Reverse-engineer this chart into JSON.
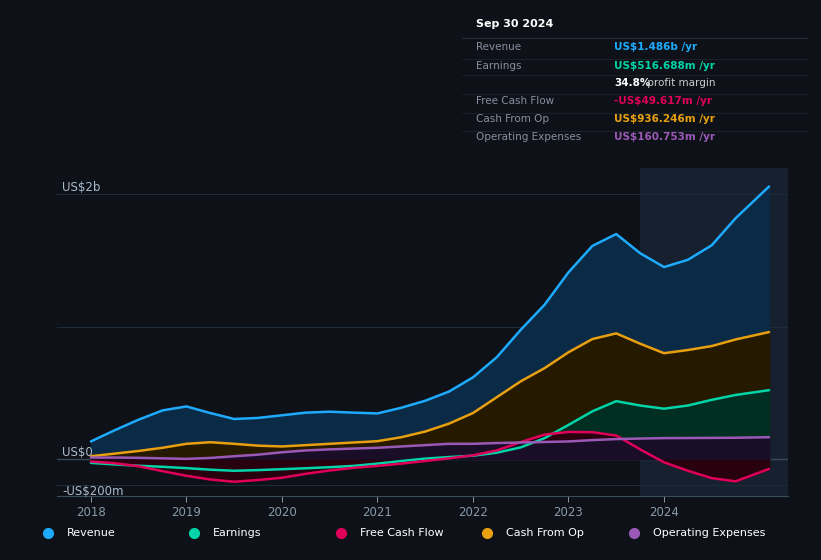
{
  "bg_color": "#0e1218",
  "plot_bg_color": "#0e1218",
  "ylim": [
    -280,
    2200
  ],
  "xlim": [
    2017.65,
    2025.3
  ],
  "xticks": [
    2018,
    2019,
    2020,
    2021,
    2022,
    2023,
    2024
  ],
  "grid_color": "#1e2d3d",
  "zero_line_color": "#3a4a5a",
  "highlight_x_start": 2023.75,
  "highlight_color": "#16202e",
  "series": {
    "revenue": {
      "color": "#1eaaff",
      "fill_color": "#0a2a45",
      "label": "Revenue",
      "x": [
        2018.0,
        2018.25,
        2018.5,
        2018.75,
        2019.0,
        2019.25,
        2019.5,
        2019.75,
        2020.0,
        2020.25,
        2020.5,
        2020.75,
        2021.0,
        2021.25,
        2021.5,
        2021.75,
        2022.0,
        2022.25,
        2022.5,
        2022.75,
        2023.0,
        2023.25,
        2023.5,
        2023.75,
        2024.0,
        2024.25,
        2024.5,
        2024.75,
        2025.1
      ],
      "y": [
        130,
        215,
        295,
        365,
        395,
        345,
        300,
        308,
        328,
        348,
        355,
        348,
        342,
        385,
        438,
        508,
        615,
        768,
        975,
        1165,
        1410,
        1610,
        1700,
        1555,
        1450,
        1505,
        1615,
        1820,
        2060
      ]
    },
    "earnings": {
      "color": "#00d4a8",
      "fill_color": "#002f22",
      "label": "Earnings",
      "x": [
        2018.0,
        2018.25,
        2018.5,
        2018.75,
        2019.0,
        2019.25,
        2019.5,
        2019.75,
        2020.0,
        2020.25,
        2020.5,
        2020.75,
        2021.0,
        2021.25,
        2021.5,
        2021.75,
        2022.0,
        2022.25,
        2022.5,
        2022.75,
        2023.0,
        2023.25,
        2023.5,
        2023.75,
        2024.0,
        2024.25,
        2024.5,
        2024.75,
        2025.1
      ],
      "y": [
        -32,
        -44,
        -54,
        -62,
        -72,
        -84,
        -92,
        -87,
        -80,
        -73,
        -65,
        -55,
        -38,
        -18,
        0,
        12,
        22,
        45,
        85,
        155,
        255,
        358,
        435,
        402,
        378,
        402,
        445,
        482,
        518
      ]
    },
    "free_cash_flow": {
      "color": "#e0005a",
      "fill_color": "#28000e",
      "label": "Free Cash Flow",
      "x": [
        2018.0,
        2018.25,
        2018.5,
        2018.75,
        2019.0,
        2019.25,
        2019.5,
        2019.75,
        2020.0,
        2020.25,
        2020.5,
        2020.75,
        2021.0,
        2021.25,
        2021.5,
        2021.75,
        2022.0,
        2022.25,
        2022.5,
        2022.75,
        2023.0,
        2023.25,
        2023.5,
        2023.75,
        2024.0,
        2024.25,
        2024.5,
        2024.75,
        2025.1
      ],
      "y": [
        -22,
        -35,
        -58,
        -95,
        -130,
        -158,
        -175,
        -162,
        -145,
        -115,
        -90,
        -70,
        -55,
        -38,
        -18,
        2,
        25,
        62,
        125,
        182,
        202,
        200,
        175,
        70,
        -28,
        -92,
        -148,
        -172,
        -78
      ]
    },
    "cash_from_op": {
      "color": "#e8a010",
      "fill_color": "#251a00",
      "label": "Cash From Op",
      "x": [
        2018.0,
        2018.25,
        2018.5,
        2018.75,
        2019.0,
        2019.25,
        2019.5,
        2019.75,
        2020.0,
        2020.25,
        2020.5,
        2020.75,
        2021.0,
        2021.25,
        2021.5,
        2021.75,
        2022.0,
        2022.25,
        2022.5,
        2022.75,
        2023.0,
        2023.25,
        2023.5,
        2023.75,
        2024.0,
        2024.25,
        2024.5,
        2024.75,
        2025.1
      ],
      "y": [
        18,
        38,
        58,
        82,
        112,
        124,
        112,
        98,
        92,
        102,
        112,
        122,
        132,
        162,
        205,
        265,
        345,
        465,
        585,
        685,
        805,
        905,
        948,
        870,
        798,
        822,
        852,
        902,
        958
      ]
    },
    "operating_expenses": {
      "color": "#9b59b6",
      "fill_color": "#1a0d28",
      "label": "Operating Expenses",
      "x": [
        2018.0,
        2018.25,
        2018.5,
        2018.75,
        2019.0,
        2019.25,
        2019.5,
        2019.75,
        2020.0,
        2020.25,
        2020.5,
        2020.75,
        2021.0,
        2021.25,
        2021.5,
        2021.75,
        2022.0,
        2022.25,
        2022.5,
        2022.75,
        2023.0,
        2023.25,
        2023.5,
        2023.75,
        2024.0,
        2024.25,
        2024.5,
        2024.75,
        2025.1
      ],
      "y": [
        8,
        8,
        6,
        2,
        -2,
        5,
        18,
        30,
        48,
        62,
        70,
        76,
        82,
        92,
        102,
        112,
        112,
        118,
        122,
        126,
        130,
        140,
        148,
        152,
        155,
        156,
        157,
        158,
        162
      ]
    }
  },
  "tooltip": {
    "date": "Sep 30 2024",
    "rows": [
      {
        "label": "Revenue",
        "value": "US$1.486b /yr",
        "value_color": "#1eaaff",
        "bold_prefix": ""
      },
      {
        "label": "Earnings",
        "value": "US$516.688m /yr",
        "value_color": "#00d4a8",
        "bold_prefix": ""
      },
      {
        "label": "",
        "value": "34.8%",
        "value_color": "#ffffff",
        "suffix": " profit margin",
        "bold_prefix": ""
      },
      {
        "label": "Free Cash Flow",
        "value": "-US$49.617m /yr",
        "value_color": "#e0005a",
        "bold_prefix": ""
      },
      {
        "label": "Cash From Op",
        "value": "US$936.246m /yr",
        "value_color": "#e8a010",
        "bold_prefix": ""
      },
      {
        "label": "Operating Expenses",
        "value": "US$160.753m /yr",
        "value_color": "#9b59b6",
        "bold_prefix": ""
      }
    ]
  },
  "legend": [
    {
      "label": "Revenue",
      "color": "#1eaaff"
    },
    {
      "label": "Earnings",
      "color": "#00d4a8"
    },
    {
      "label": "Free Cash Flow",
      "color": "#e0005a"
    },
    {
      "label": "Cash From Op",
      "color": "#e8a010"
    },
    {
      "label": "Operating Expenses",
      "color": "#9b59b6"
    }
  ]
}
